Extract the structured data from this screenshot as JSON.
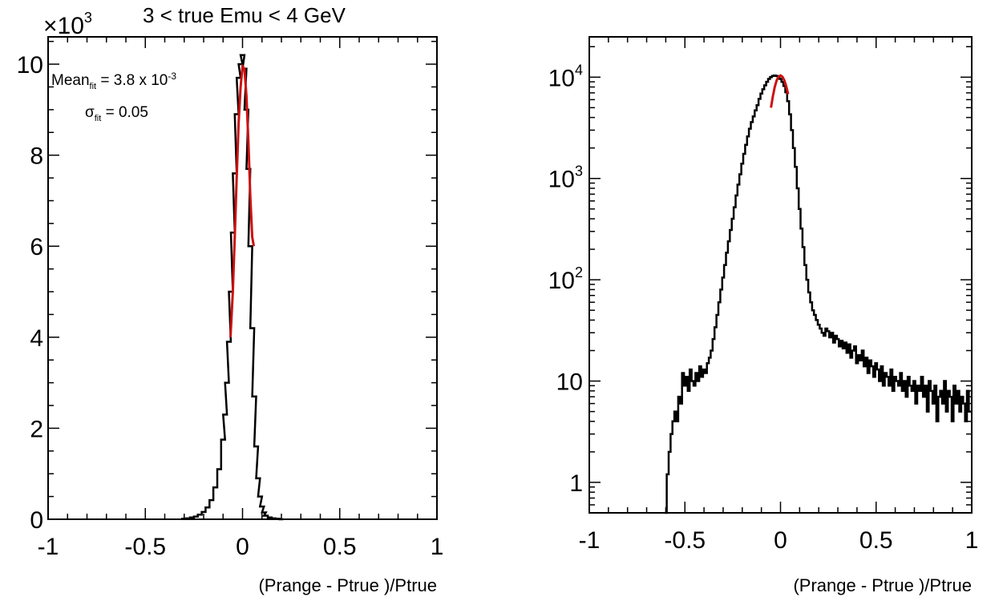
{
  "chart_data": [
    {
      "type": "step",
      "title": "3 < true Emu < 4 GeV",
      "xlabel": "(Prange - Ptrue )/Ptrue",
      "ylabel": "",
      "y_multiplier_label": "×10",
      "y_multiplier_exponent": "3",
      "xlim": [
        -1,
        1
      ],
      "ylim": [
        0,
        10.6
      ],
      "yscale": "linear",
      "grid": false,
      "x_tick_labels": [
        "-1",
        "-0.5",
        "0",
        "0.5",
        "1"
      ],
      "y_tick_labels": [
        "0",
        "2",
        "4",
        "6",
        "8",
        "10"
      ],
      "annotations": [
        {
          "text": "Mean",
          "sub": "fit",
          "rest": " = 3.8 x 10",
          "sup": "-3"
        },
        {
          "text": "σ",
          "sub": "fit",
          "rest": " = 0.05"
        }
      ],
      "histogram": {
        "x": [
          -0.3,
          -0.28,
          -0.26,
          -0.24,
          -0.22,
          -0.2,
          -0.18,
          -0.16,
          -0.14,
          -0.12,
          -0.1,
          -0.09,
          -0.08,
          -0.07,
          -0.06,
          -0.05,
          -0.04,
          -0.03,
          -0.02,
          -0.01,
          0.0,
          0.01,
          0.02,
          0.03,
          0.04,
          0.05,
          0.06,
          0.07,
          0.08,
          0.09,
          0.1,
          0.11,
          0.12,
          0.14,
          0.16,
          0.18,
          0.2
        ],
        "y": [
          0.01,
          0.02,
          0.04,
          0.06,
          0.1,
          0.16,
          0.26,
          0.42,
          0.7,
          1.1,
          1.75,
          2.3,
          3.0,
          3.9,
          5.0,
          6.3,
          7.6,
          8.9,
          9.7,
          10.0,
          10.2,
          9.9,
          9.0,
          7.7,
          6.0,
          4.2,
          2.7,
          1.6,
          0.9,
          0.5,
          0.28,
          0.15,
          0.08,
          0.04,
          0.02,
          0.01,
          0.0
        ]
      },
      "fit": {
        "color": "#cc1111",
        "x": [
          -0.062,
          -0.05,
          -0.04,
          -0.03,
          -0.02,
          -0.01,
          0.0,
          0.01,
          0.02,
          0.03,
          0.04,
          0.05,
          0.058
        ],
        "y": [
          4.0,
          5.0,
          6.2,
          7.5,
          8.7,
          9.5,
          9.95,
          9.9,
          9.3,
          8.3,
          7.1,
          6.2,
          6.0
        ]
      }
    },
    {
      "type": "step",
      "title": "",
      "xlabel": "(Prange - Ptrue )/Ptrue",
      "ylabel": "",
      "xlim": [
        -1,
        1
      ],
      "ylim": [
        0.5,
        25000
      ],
      "yscale": "log",
      "grid": false,
      "x_tick_labels": [
        "-1",
        "-0.5",
        "0",
        "0.5",
        "1"
      ],
      "y_ticks": [
        {
          "value": 1,
          "base": "1",
          "exp": ""
        },
        {
          "value": 10,
          "base": "10",
          "exp": ""
        },
        {
          "value": 100,
          "base": "10",
          "exp": "2"
        },
        {
          "value": 1000,
          "base": "10",
          "exp": "3"
        },
        {
          "value": 10000,
          "base": "10",
          "exp": "4"
        }
      ],
      "histogram": {
        "x": [
          -0.6,
          -0.59,
          -0.58,
          -0.57,
          -0.56,
          -0.55,
          -0.54,
          -0.53,
          -0.52,
          -0.51,
          -0.5,
          -0.49,
          -0.48,
          -0.47,
          -0.46,
          -0.45,
          -0.44,
          -0.43,
          -0.42,
          -0.41,
          -0.4,
          -0.39,
          -0.38,
          -0.37,
          -0.36,
          -0.35,
          -0.34,
          -0.33,
          -0.32,
          -0.31,
          -0.3,
          -0.29,
          -0.28,
          -0.27,
          -0.26,
          -0.25,
          -0.24,
          -0.23,
          -0.22,
          -0.21,
          -0.2,
          -0.19,
          -0.18,
          -0.17,
          -0.16,
          -0.15,
          -0.14,
          -0.13,
          -0.12,
          -0.11,
          -0.1,
          -0.09,
          -0.08,
          -0.07,
          -0.06,
          -0.05,
          -0.04,
          -0.03,
          -0.02,
          -0.01,
          0.0,
          0.01,
          0.02,
          0.03,
          0.04,
          0.05,
          0.06,
          0.07,
          0.08,
          0.09,
          0.1,
          0.11,
          0.12,
          0.13,
          0.14,
          0.15,
          0.16,
          0.17,
          0.18,
          0.19,
          0.2,
          0.21,
          0.22,
          0.23,
          0.24,
          0.25,
          0.26,
          0.27,
          0.28,
          0.29,
          0.3,
          0.31,
          0.32,
          0.33,
          0.34,
          0.35,
          0.36,
          0.37,
          0.38,
          0.39,
          0.4,
          0.41,
          0.42,
          0.43,
          0.44,
          0.45,
          0.46,
          0.47,
          0.48,
          0.49,
          0.5,
          0.51,
          0.52,
          0.53,
          0.54,
          0.55,
          0.56,
          0.57,
          0.58,
          0.59,
          0.6,
          0.61,
          0.62,
          0.63,
          0.64,
          0.65,
          0.66,
          0.67,
          0.68,
          0.69,
          0.7,
          0.71,
          0.72,
          0.73,
          0.74,
          0.75,
          0.76,
          0.77,
          0.78,
          0.79,
          0.8,
          0.81,
          0.82,
          0.83,
          0.84,
          0.85,
          0.86,
          0.87,
          0.88,
          0.89,
          0.9,
          0.91,
          0.92,
          0.93,
          0.94,
          0.95,
          0.96,
          0.97,
          0.98,
          0.99
        ],
        "y": [
          0.5,
          1.2,
          2,
          3,
          4,
          5,
          4,
          7,
          6,
          12,
          9,
          11,
          8,
          13,
          10,
          9,
          12,
          10,
          14,
          11,
          13,
          12,
          15,
          17,
          20,
          26,
          34,
          45,
          60,
          80,
          105,
          140,
          185,
          240,
          310,
          400,
          520,
          680,
          870,
          1100,
          1400,
          1750,
          2150,
          2600,
          3100,
          3600,
          4100,
          4700,
          5300,
          6100,
          6900,
          7600,
          8300,
          9000,
          9600,
          10000,
          10300,
          10400,
          10300,
          10000,
          9600,
          9000,
          8200,
          7100,
          5800,
          4300,
          3000,
          2000,
          1300,
          800,
          500,
          320,
          210,
          140,
          100,
          75,
          60,
          50,
          45,
          40,
          36,
          33,
          30,
          28,
          33,
          31,
          27,
          30,
          24,
          28,
          26,
          22,
          25,
          21,
          24,
          19,
          23,
          17,
          20,
          22,
          15,
          18,
          16,
          20,
          14,
          17,
          12,
          16,
          14,
          11,
          15,
          13,
          10,
          14,
          9,
          12,
          11,
          9,
          13,
          8,
          11,
          10,
          9,
          12,
          8,
          10,
          7,
          11,
          9,
          8,
          10,
          6,
          9,
          8,
          11,
          7,
          9,
          5,
          10,
          8,
          6,
          9,
          4,
          7,
          8,
          6,
          10,
          5,
          8,
          7,
          4,
          9,
          6,
          8,
          5,
          7,
          6,
          4,
          8,
          5
        ]
      },
      "fit": {
        "color": "#cc1111",
        "x": [
          -0.05,
          -0.04,
          -0.03,
          -0.02,
          -0.01,
          0.0,
          0.01,
          0.02,
          0.03,
          0.04
        ],
        "y": [
          5000,
          6500,
          8000,
          9300,
          10100,
          10400,
          10100,
          9300,
          8100,
          6800
        ]
      }
    }
  ]
}
